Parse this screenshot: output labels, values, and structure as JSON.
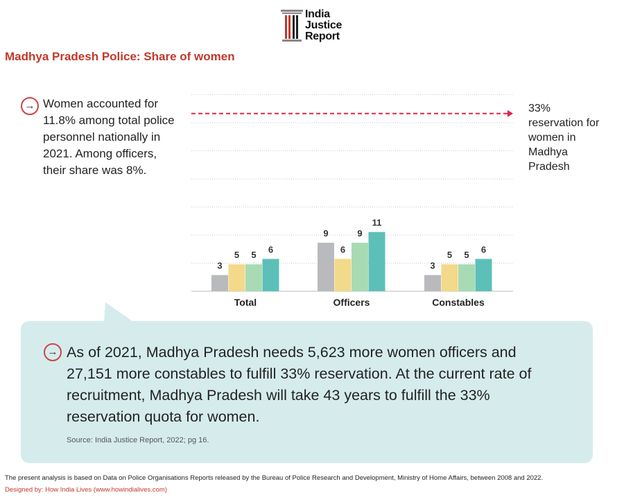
{
  "logo": {
    "lines": [
      "India",
      "Justice",
      "Report"
    ],
    "colors": {
      "pillar": "#c0392b",
      "roof": "#888888"
    }
  },
  "title": "Madhya Pradesh Police: Share of women",
  "left_note": "Women accounted for 11.8% among total police personnel nationally in 2021. Among officers, their share was 8%.",
  "target": {
    "value": "33%",
    "text": "reservation for women in Madhya Pradesh",
    "color": "#e0244a"
  },
  "chart_data": {
    "type": "bar",
    "categories": [
      "Total",
      "Officers",
      "Constables"
    ],
    "series": [
      {
        "values": [
          3,
          9,
          3
        ],
        "color": "#b9babd"
      },
      {
        "values": [
          5,
          6,
          5
        ],
        "color": "#f3d98a"
      },
      {
        "values": [
          5,
          9,
          5
        ],
        "color": "#a8dbb4"
      },
      {
        "values": [
          6,
          11,
          6
        ],
        "color": "#5cc0b8"
      }
    ],
    "reference_line": {
      "value": 33
    },
    "ylim": [
      0,
      34
    ],
    "grid": true,
    "xlabel": "",
    "ylabel": ""
  },
  "callout": {
    "text": "As of 2021, Madhya Pradesh needs 5,623 more women officers and 27,151 more constables to fulfill 33% reservation. At the current rate of recruitment, Madhya Pradesh will take 43 years to fulfill the 33% reservation quota for women.",
    "source": "Source: India Justice Report, 2022; pg 16.",
    "background": "#d6ecec"
  },
  "footer": {
    "note": "The present analysis is based on Data on Police Organisations Reports released by the Bureau of Police Research and Development, Ministry of Home Affairs,  between 2008 and 2022.",
    "designed_by": "Designed by: How India Lives (www.howindialives.com)"
  }
}
